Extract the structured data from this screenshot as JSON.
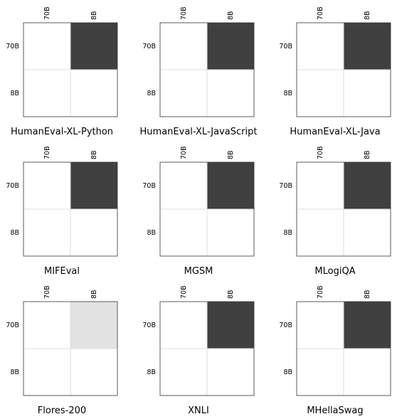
{
  "figure": {
    "background": "#ffffff"
  },
  "chart_data": [
    {
      "type": "heatmap",
      "title": "HumanEval-XL-Python",
      "x_categories": [
        "70B",
        "8B"
      ],
      "y_categories": [
        "70B",
        "8B"
      ],
      "cells": [
        [
          0,
          1
        ],
        [
          0,
          0
        ]
      ]
    },
    {
      "type": "heatmap",
      "title": "HumanEval-XL-JavaScript",
      "x_categories": [
        "70B",
        "8B"
      ],
      "y_categories": [
        "70B",
        "8B"
      ],
      "cells": [
        [
          0,
          1
        ],
        [
          0,
          0
        ]
      ]
    },
    {
      "type": "heatmap",
      "title": "HumanEval-XL-Java",
      "x_categories": [
        "70B",
        "8B"
      ],
      "y_categories": [
        "70B",
        "8B"
      ],
      "cells": [
        [
          0,
          1
        ],
        [
          0,
          0
        ]
      ]
    },
    {
      "type": "heatmap",
      "title": "MIFEval",
      "x_categories": [
        "70B",
        "8B"
      ],
      "y_categories": [
        "70B",
        "8B"
      ],
      "cells": [
        [
          0,
          1
        ],
        [
          0,
          0
        ]
      ]
    },
    {
      "type": "heatmap",
      "title": "MGSM",
      "x_categories": [
        "70B",
        "8B"
      ],
      "y_categories": [
        "70B",
        "8B"
      ],
      "cells": [
        [
          0,
          1
        ],
        [
          0,
          0
        ]
      ]
    },
    {
      "type": "heatmap",
      "title": "MLogiQA",
      "x_categories": [
        "70B",
        "8B"
      ],
      "y_categories": [
        "70B",
        "8B"
      ],
      "cells": [
        [
          0,
          1
        ],
        [
          0,
          0
        ]
      ]
    },
    {
      "type": "heatmap",
      "title": "Flores-200",
      "x_categories": [
        "70B",
        "8B"
      ],
      "y_categories": [
        "70B",
        "8B"
      ],
      "cells": [
        [
          0,
          0.15
        ],
        [
          0,
          0
        ]
      ]
    },
    {
      "type": "heatmap",
      "title": "XNLI",
      "x_categories": [
        "70B",
        "8B"
      ],
      "y_categories": [
        "70B",
        "8B"
      ],
      "cells": [
        [
          0,
          1
        ],
        [
          0,
          0
        ]
      ]
    },
    {
      "type": "heatmap",
      "title": "MHellaSwag",
      "x_categories": [
        "70B",
        "8B"
      ],
      "y_categories": [
        "70B",
        "8B"
      ],
      "cells": [
        [
          0,
          1
        ],
        [
          0,
          0
        ]
      ]
    }
  ],
  "colors": {
    "cell_high": "#404040",
    "cell_low": "#ffffff",
    "gridline": "#dddddd",
    "frame": "#333333"
  },
  "grid": true
}
